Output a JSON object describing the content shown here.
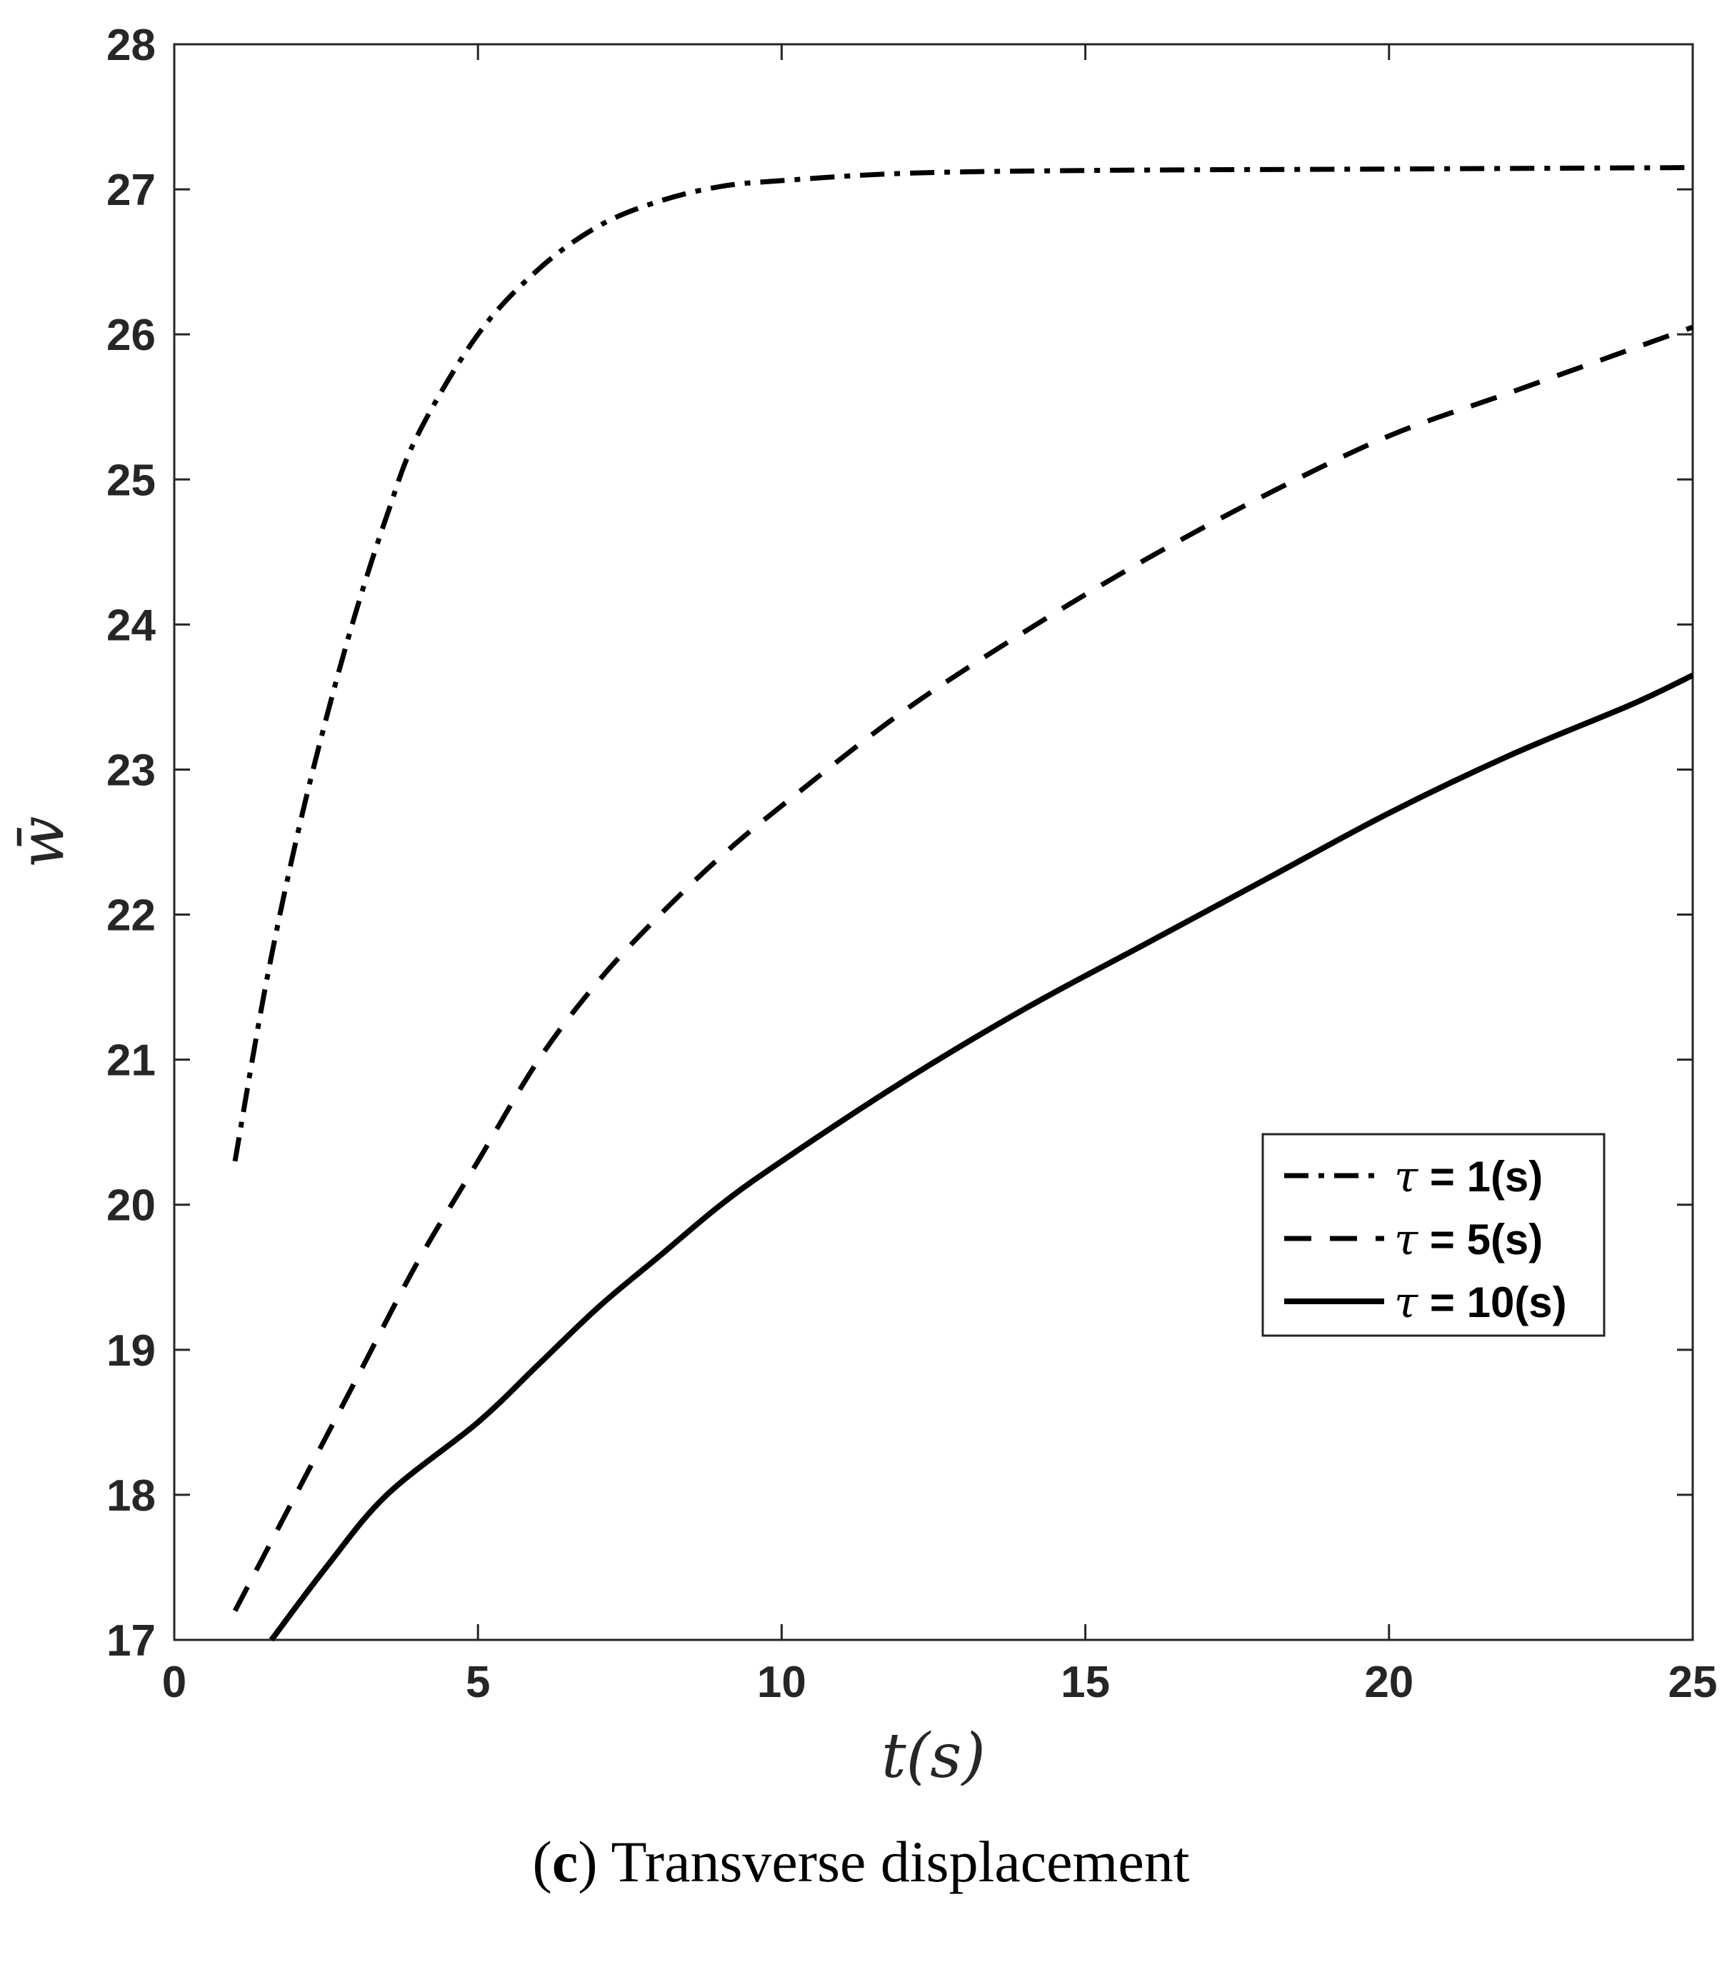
{
  "chart_data": {
    "type": "line",
    "xlabel": "t(s)",
    "ylabel": "w̄",
    "xlim": [
      0,
      25
    ],
    "ylim": [
      17,
      28
    ],
    "xticks": [
      "0",
      "5",
      "10",
      "15",
      "20",
      "25"
    ],
    "yticks": [
      "17",
      "18",
      "19",
      "20",
      "21",
      "22",
      "23",
      "24",
      "25",
      "26",
      "27",
      "28"
    ],
    "grid": false,
    "legend_position": "right-middle",
    "series": [
      {
        "name": "τ = 1(s)",
        "legend_symbol": "τ",
        "legend_text": " = 1(s)",
        "style": "dashdot",
        "x": [
          1,
          1.5,
          2,
          2.5,
          3,
          3.5,
          4,
          5,
          6,
          7,
          8,
          9,
          10,
          12,
          15,
          20,
          25
        ],
        "y": [
          20.3,
          21.5,
          22.5,
          23.35,
          24.1,
          24.75,
          25.3,
          26.0,
          26.45,
          26.75,
          26.92,
          27.02,
          27.06,
          27.11,
          27.13,
          27.14,
          27.15
        ]
      },
      {
        "name": "τ = 5(s)",
        "legend_symbol": "τ",
        "legend_text": " = 5(s)",
        "style": "dashed",
        "x": [
          1,
          2,
          3,
          4,
          5,
          6,
          7,
          8,
          9,
          10,
          12,
          14,
          16,
          18,
          20,
          22,
          24,
          25
        ],
        "y": [
          17.2,
          18.0,
          18.8,
          19.6,
          20.3,
          21.0,
          21.55,
          22.0,
          22.4,
          22.75,
          23.4,
          23.95,
          24.45,
          24.9,
          25.3,
          25.6,
          25.9,
          26.05
        ]
      },
      {
        "name": "τ = 10(s)",
        "legend_symbol": "τ",
        "legend_text": " = 10(s)",
        "style": "solid",
        "x": [
          1.6,
          2.5,
          3.5,
          5,
          6,
          7,
          8,
          9,
          10,
          12,
          14,
          16,
          18,
          20,
          22,
          24,
          25
        ],
        "y": [
          17.0,
          17.5,
          18.0,
          18.5,
          18.9,
          19.3,
          19.65,
          20.0,
          20.3,
          20.85,
          21.35,
          21.8,
          22.25,
          22.7,
          23.1,
          23.45,
          23.65
        ]
      }
    ]
  },
  "caption": {
    "letter": "c",
    "open": "(",
    "close": ")",
    "text": " Transverse displacement"
  }
}
